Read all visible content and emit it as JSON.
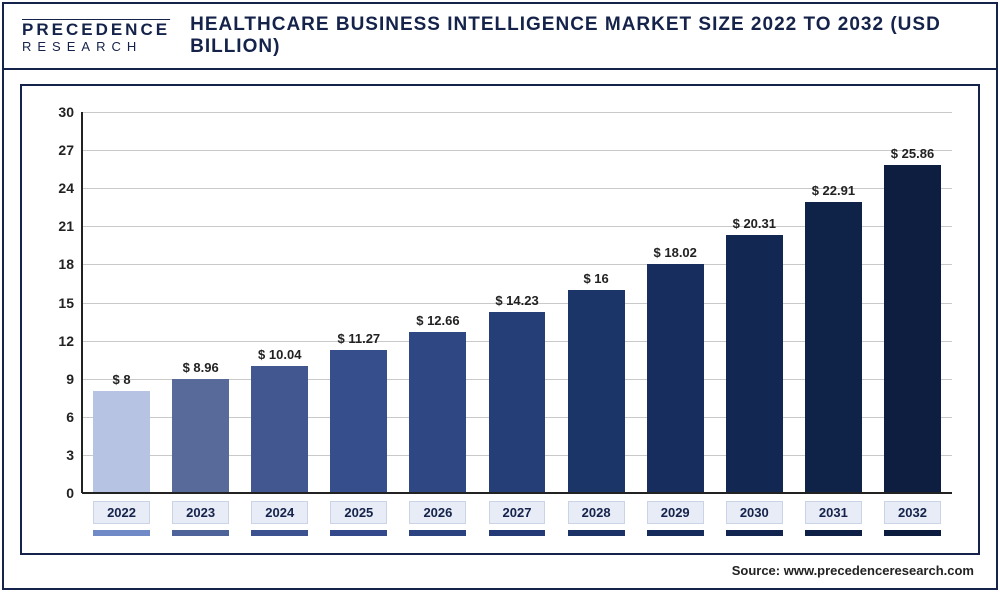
{
  "logo": {
    "top": "PRECEDENCE",
    "bottom": "RESEARCH"
  },
  "title": "HEALTHCARE BUSINESS INTELLIGENCE MARKET SIZE 2022 TO 2032 (USD BILLION)",
  "source": "Source: www.precedenceresearch.com",
  "chart": {
    "type": "bar",
    "ylim": [
      0,
      30
    ],
    "ytick_step": 3,
    "yticks": [
      0,
      3,
      6,
      9,
      12,
      15,
      18,
      21,
      24,
      27,
      30
    ],
    "grid_color": "#c9c9c9",
    "background_color": "#ffffff",
    "frame_color": "#15234a",
    "label_fontsize": 14,
    "value_prefix": "$ ",
    "categories": [
      "2022",
      "2023",
      "2024",
      "2025",
      "2026",
      "2027",
      "2028",
      "2029",
      "2030",
      "2031",
      "2032"
    ],
    "values": [
      8,
      8.96,
      10.04,
      11.27,
      12.66,
      14.23,
      16,
      18.02,
      20.31,
      22.91,
      25.86
    ],
    "value_labels": [
      "$ 8",
      "$ 8.96",
      "$ 10.04",
      "$ 11.27",
      "$ 12.66",
      "$ 14.23",
      "$ 16",
      "$ 18.02",
      "$ 20.31",
      "$ 22.91",
      "$ 25.86"
    ],
    "bar_colors": [
      "#b6c3e2",
      "#586a9a",
      "#425690",
      "#374e8d",
      "#2f4783",
      "#263e78",
      "#1c3568",
      "#162d5d",
      "#122752",
      "#0f2248",
      "#0d1e40"
    ],
    "bar_width": 0.72,
    "xtick_box_bg": "#e7ecf6",
    "xtick_box_border": "#cbd4e6",
    "xtick_text_color": "#15234a",
    "accent_colors": [
      "#6f8ac6",
      "#4e639a",
      "#3c5190",
      "#33498b",
      "#2b4281",
      "#233a76",
      "#1a3266",
      "#152b5b",
      "#112550",
      "#0e2046",
      "#0c1c3e"
    ]
  }
}
